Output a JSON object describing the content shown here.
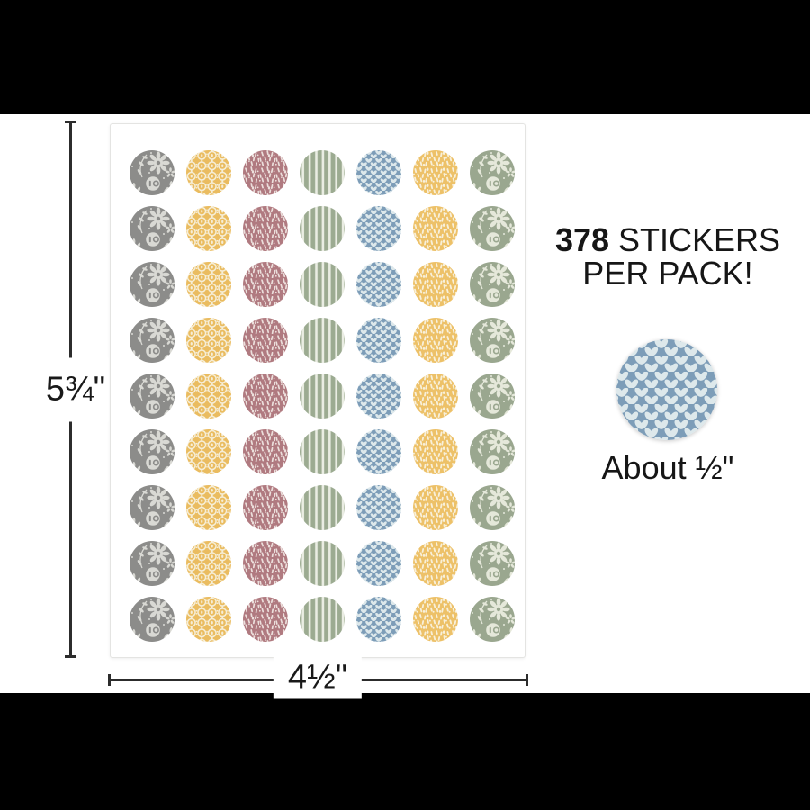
{
  "sheet": {
    "rows": 9,
    "columns": 7,
    "column_patterns": [
      "gray-floral",
      "gold-lattice",
      "rose-dash",
      "sage-stripe",
      "blue-leaves",
      "gold-dash",
      "sage-floral"
    ]
  },
  "dimension_labels": {
    "height": "5¾\"",
    "width": "4½\""
  },
  "callout": {
    "count": "378",
    "count_suffix": " STICKERS",
    "line2": "PER PACK!",
    "sample_pattern": "blue-leaves",
    "size_note": "About ½\""
  },
  "palette": {
    "grey_floral": {
      "bg": "#8c8c8a",
      "fg": "#d9d9d4"
    },
    "gold_lattice": {
      "bg": "#eabc60",
      "fg": "#f6eed7"
    },
    "rose_speckle": {
      "bg": "#b07a80",
      "fg": "#ecdfdc"
    },
    "sage_stripe": {
      "bg": "#9cab91",
      "fg": "#eaede3"
    },
    "blue_vine": {
      "bg": "#7d9db8",
      "fg": "#dde8eb"
    },
    "gold_speckle": {
      "bg": "#edc168",
      "fg": "#f8f0da"
    },
    "sage_floral": {
      "bg": "#9aa78f",
      "fg": "#e5e8da"
    },
    "dimension_line": "#2c2c2c",
    "letterbox": "#000000"
  }
}
